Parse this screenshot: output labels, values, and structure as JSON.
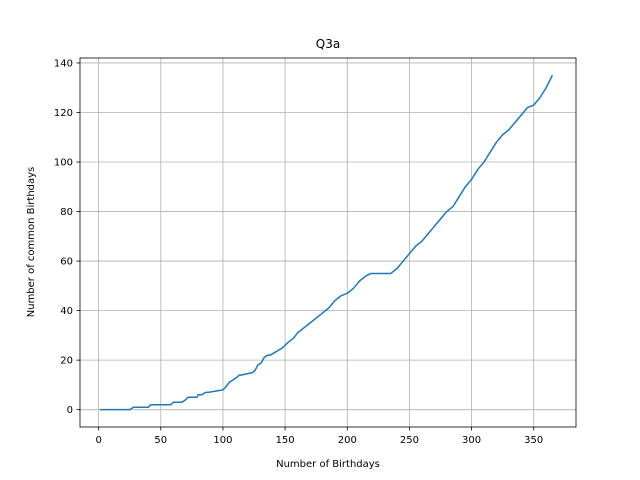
{
  "chart_data": {
    "type": "line",
    "title": "Q3a",
    "xlabel": "Number of Birthdays",
    "ylabel": "Number of common Birthdays",
    "xlim": [
      -15,
      384
    ],
    "ylim": [
      -7,
      142
    ],
    "xticks": [
      0,
      50,
      100,
      150,
      200,
      250,
      300,
      350
    ],
    "yticks": [
      0,
      20,
      40,
      60,
      80,
      100,
      120,
      140
    ],
    "grid": true,
    "line_color": "#1f77b4",
    "series": [
      {
        "x": [
          1,
          25,
          28,
          40,
          42,
          58,
          60,
          67,
          70,
          72,
          79,
          80,
          83,
          86,
          88,
          100,
          102,
          105,
          108,
          111,
          113,
          115,
          124,
          126,
          128,
          131,
          133,
          136,
          138,
          148,
          152,
          157,
          160,
          165,
          170,
          175,
          180,
          185,
          190,
          195,
          200,
          205,
          210,
          215,
          219,
          225,
          235,
          240,
          245,
          250,
          255,
          260,
          265,
          270,
          275,
          280,
          285,
          290,
          295,
          300,
          305,
          310,
          315,
          320,
          325,
          330,
          335,
          340,
          345,
          350,
          355,
          360,
          365
        ],
        "y": [
          0,
          0,
          1,
          1,
          2,
          2,
          3,
          3,
          4,
          5,
          5,
          6,
          6,
          7,
          7,
          8,
          9,
          11,
          12,
          13,
          14,
          14,
          15,
          16,
          18,
          19,
          21,
          22,
          22,
          25,
          27,
          29,
          31,
          33,
          35,
          37,
          39,
          41,
          44,
          46,
          47,
          49,
          52,
          54,
          55,
          55,
          55,
          57,
          60,
          63,
          66,
          68,
          71,
          74,
          77,
          80,
          82,
          86,
          90,
          93,
          97,
          100,
          104,
          108,
          111,
          113,
          116,
          119,
          122,
          123,
          126,
          130,
          135
        ]
      }
    ]
  }
}
